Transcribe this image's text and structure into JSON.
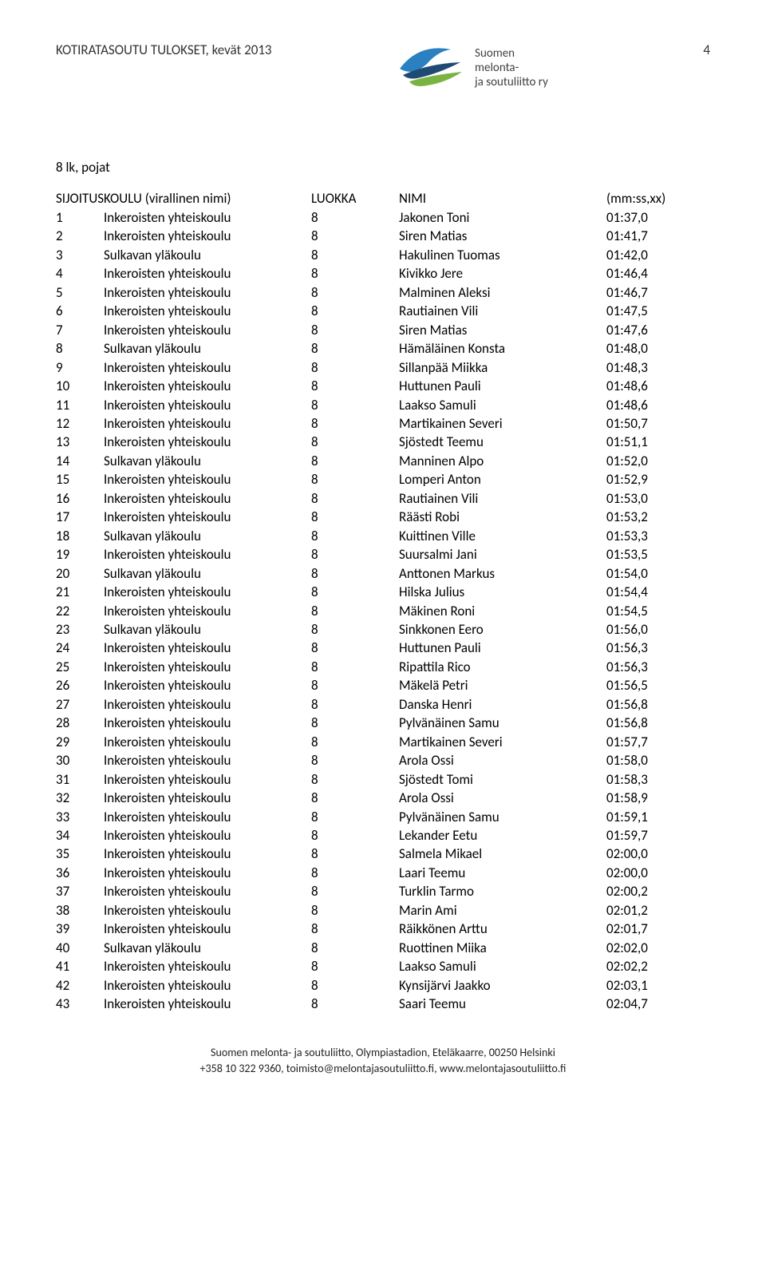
{
  "doc_title": "KOTIRATASOUTU TULOKSET, kevät 2013",
  "page_number": "4",
  "logo_lines": [
    "Suomen",
    "melonta-",
    "ja soutuliitto ry"
  ],
  "section_title": "8 lk, pojat",
  "columns": {
    "rank": "SIJOITUS",
    "school": "KOULU (virallinen nimi)",
    "grade": "LUOKKA",
    "name": "NIMI",
    "time": "(mm:ss,xx)"
  },
  "rows": [
    {
      "rank": "1",
      "school": "Inkeroisten yhteiskoulu",
      "grade": "8",
      "name": "Jakonen Toni",
      "time": "01:37,0"
    },
    {
      "rank": "2",
      "school": "Inkeroisten yhteiskoulu",
      "grade": "8",
      "name": "Siren Matias",
      "time": "01:41,7"
    },
    {
      "rank": "3",
      "school": "Sulkavan yläkoulu",
      "grade": "8",
      "name": "Hakulinen  Tuomas",
      "time": "01:42,0"
    },
    {
      "rank": "4",
      "school": "Inkeroisten yhteiskoulu",
      "grade": "8",
      "name": "Kivikko Jere",
      "time": "01:46,4"
    },
    {
      "rank": "5",
      "school": "Inkeroisten yhteiskoulu",
      "grade": "8",
      "name": "Malminen Aleksi",
      "time": "01:46,7"
    },
    {
      "rank": "6",
      "school": "Inkeroisten yhteiskoulu",
      "grade": "8",
      "name": "Rautiainen Vili",
      "time": "01:47,5"
    },
    {
      "rank": "7",
      "school": "Inkeroisten yhteiskoulu",
      "grade": "8",
      "name": "Siren Matias",
      "time": "01:47,6"
    },
    {
      "rank": "8",
      "school": "Sulkavan yläkoulu",
      "grade": "8",
      "name": "Hämäläinen Konsta",
      "time": "01:48,0"
    },
    {
      "rank": "9",
      "school": "Inkeroisten yhteiskoulu",
      "grade": "8",
      "name": "Sillanpää Miikka",
      "time": "01:48,3"
    },
    {
      "rank": "10",
      "school": "Inkeroisten yhteiskoulu",
      "grade": "8",
      "name": "Huttunen Pauli",
      "time": "01:48,6"
    },
    {
      "rank": "11",
      "school": "Inkeroisten yhteiskoulu",
      "grade": "8",
      "name": "Laakso Samuli",
      "time": "01:48,6"
    },
    {
      "rank": "12",
      "school": "Inkeroisten yhteiskoulu",
      "grade": "8",
      "name": "Martikainen Severi",
      "time": "01:50,7"
    },
    {
      "rank": "13",
      "school": "Inkeroisten yhteiskoulu",
      "grade": "8",
      "name": "Sjöstedt Teemu",
      "time": "01:51,1"
    },
    {
      "rank": "14",
      "school": "Sulkavan yläkoulu",
      "grade": "8",
      "name": "Manninen  Alpo",
      "time": "01:52,0"
    },
    {
      "rank": "15",
      "school": "Inkeroisten yhteiskoulu",
      "grade": "8",
      "name": "Lomperi Anton",
      "time": "01:52,9"
    },
    {
      "rank": "16",
      "school": "Inkeroisten yhteiskoulu",
      "grade": "8",
      "name": "Rautiainen Vili",
      "time": "01:53,0"
    },
    {
      "rank": "17",
      "school": "Inkeroisten yhteiskoulu",
      "grade": "8",
      "name": "Räästi Robi",
      "time": "01:53,2"
    },
    {
      "rank": "18",
      "school": "Sulkavan yläkoulu",
      "grade": "8",
      "name": "Kuittinen  Ville",
      "time": "01:53,3"
    },
    {
      "rank": "19",
      "school": "Inkeroisten yhteiskoulu",
      "grade": "8",
      "name": "Suursalmi Jani",
      "time": "01:53,5"
    },
    {
      "rank": "20",
      "school": "Sulkavan yläkoulu",
      "grade": "8",
      "name": "Anttonen  Markus",
      "time": "01:54,0"
    },
    {
      "rank": "21",
      "school": "Inkeroisten yhteiskoulu",
      "grade": "8",
      "name": "Hilska Julius",
      "time": "01:54,4"
    },
    {
      "rank": "22",
      "school": "Inkeroisten yhteiskoulu",
      "grade": "8",
      "name": "Mäkinen Roni",
      "time": "01:54,5"
    },
    {
      "rank": "23",
      "school": "Sulkavan yläkoulu",
      "grade": "8",
      "name": "Sinkkonen  Eero",
      "time": "01:56,0"
    },
    {
      "rank": "24",
      "school": "Inkeroisten yhteiskoulu",
      "grade": "8",
      "name": "Huttunen Pauli",
      "time": "01:56,3"
    },
    {
      "rank": "25",
      "school": "Inkeroisten yhteiskoulu",
      "grade": "8",
      "name": "Ripattila Rico",
      "time": "01:56,3"
    },
    {
      "rank": "26",
      "school": "Inkeroisten yhteiskoulu",
      "grade": "8",
      "name": "Mäkelä Petri",
      "time": "01:56,5"
    },
    {
      "rank": "27",
      "school": "Inkeroisten yhteiskoulu",
      "grade": "8",
      "name": "Danska Henri",
      "time": "01:56,8"
    },
    {
      "rank": "28",
      "school": "Inkeroisten yhteiskoulu",
      "grade": "8",
      "name": "Pylvänäinen Samu",
      "time": "01:56,8"
    },
    {
      "rank": "29",
      "school": "Inkeroisten yhteiskoulu",
      "grade": "8",
      "name": "Martikainen Severi",
      "time": "01:57,7"
    },
    {
      "rank": "30",
      "school": "Inkeroisten yhteiskoulu",
      "grade": "8",
      "name": "Arola Ossi",
      "time": "01:58,0"
    },
    {
      "rank": "31",
      "school": "Inkeroisten yhteiskoulu",
      "grade": "8",
      "name": "Sjöstedt Tomi",
      "time": "01:58,3"
    },
    {
      "rank": "32",
      "school": "Inkeroisten yhteiskoulu",
      "grade": "8",
      "name": "Arola Ossi",
      "time": "01:58,9"
    },
    {
      "rank": "33",
      "school": "Inkeroisten yhteiskoulu",
      "grade": "8",
      "name": "Pylvänäinen Samu",
      "time": "01:59,1"
    },
    {
      "rank": "34",
      "school": "Inkeroisten yhteiskoulu",
      "grade": "8",
      "name": "Lekander Eetu",
      "time": "01:59,7"
    },
    {
      "rank": "35",
      "school": "Inkeroisten yhteiskoulu",
      "grade": "8",
      "name": "Salmela Mikael",
      "time": "02:00,0"
    },
    {
      "rank": "36",
      "school": "Inkeroisten yhteiskoulu",
      "grade": "8",
      "name": "Laari Teemu",
      "time": "02:00,0"
    },
    {
      "rank": "37",
      "school": "Inkeroisten yhteiskoulu",
      "grade": "8",
      "name": "Turklin Tarmo",
      "time": "02:00,2"
    },
    {
      "rank": "38",
      "school": "Inkeroisten yhteiskoulu",
      "grade": "8",
      "name": "Marin Ami",
      "time": "02:01,2"
    },
    {
      "rank": "39",
      "school": "Inkeroisten yhteiskoulu",
      "grade": "8",
      "name": "Räikkönen Arttu",
      "time": "02:01,7"
    },
    {
      "rank": "40",
      "school": "Sulkavan yläkoulu",
      "grade": "8",
      "name": "Ruottinen  Miika",
      "time": "02:02,0"
    },
    {
      "rank": "41",
      "school": "Inkeroisten yhteiskoulu",
      "grade": "8",
      "name": "Laakso Samuli",
      "time": "02:02,2"
    },
    {
      "rank": "42",
      "school": "Inkeroisten yhteiskoulu",
      "grade": "8",
      "name": "Kynsijärvi Jaakko",
      "time": "02:03,1"
    },
    {
      "rank": "43",
      "school": "Inkeroisten yhteiskoulu",
      "grade": "8",
      "name": "Saari Teemu",
      "time": "02:04,7"
    }
  ],
  "footer": {
    "line1": "Suomen melonta- ja soutuliitto, Olympiastadion, Eteläkaarre, 00250 Helsinki",
    "line2": "+358 10 322 9360, toimisto@melontajasoutuliitto.fi, www.melontajasoutuliitto.fi"
  },
  "style": {
    "logo_blue": "#2a80c0",
    "logo_dark": "#1f4a72",
    "logo_green": "#7bb342"
  }
}
